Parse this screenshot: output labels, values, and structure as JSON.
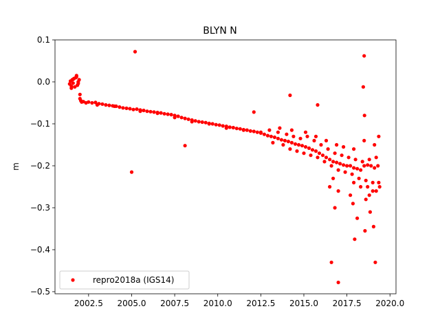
{
  "chart_data": {
    "type": "scatter",
    "title": "BLYN N",
    "xlabel": "",
    "ylabel": "m",
    "xlim": [
      2000.55,
      2020.35
    ],
    "ylim": [
      -0.505,
      0.1
    ],
    "xticks": [
      2002.5,
      2005.0,
      2007.5,
      2010.0,
      2012.5,
      2015.0,
      2017.5,
      2020.0
    ],
    "xtick_labels": [
      "2002.5",
      "2005.0",
      "2007.5",
      "2010.0",
      "2012.5",
      "2015.0",
      "2017.5",
      "2020.0"
    ],
    "yticks": [
      0.1,
      0.0,
      -0.1,
      -0.2,
      -0.3,
      -0.4,
      -0.5
    ],
    "ytick_labels": [
      "0.1",
      "0.0",
      "−0.1",
      "−0.2",
      "−0.3",
      "−0.4",
      "−0.5"
    ],
    "grid": false,
    "legend_position": "lower-left",
    "series": [
      {
        "name": "repro2018a (IGS14)",
        "color": "#ff0000",
        "marker": "circle",
        "x": [
          2001.4,
          2001.45,
          2001.5,
          2001.55,
          2001.6,
          2001.65,
          2001.7,
          2001.75,
          2001.8,
          2001.85,
          2001.9,
          2001.95,
          2002.0,
          2002.05,
          2001.5,
          2001.6,
          2001.8,
          2001.9,
          2002.0,
          2002.1,
          2002.2,
          2002.35,
          2002.5,
          2002.7,
          2002.9,
          2003.1,
          2003.3,
          2003.5,
          2003.7,
          2003.9,
          2004.1,
          2004.3,
          2004.5,
          2004.7,
          2004.9,
          2005.1,
          2005.3,
          2005.5,
          2005.7,
          2005.9,
          2006.1,
          2006.3,
          2006.5,
          2006.7,
          2006.9,
          2007.1,
          2007.3,
          2007.5,
          2007.7,
          2007.9,
          2008.1,
          2008.3,
          2008.5,
          2008.7,
          2008.9,
          2009.1,
          2009.3,
          2009.5,
          2009.7,
          2009.9,
          2010.1,
          2010.3,
          2010.5,
          2010.7,
          2010.9,
          2011.1,
          2011.3,
          2011.5,
          2011.7,
          2011.9,
          2012.1,
          2012.3,
          2012.5,
          2012.7,
          2012.9,
          2013.1,
          2013.3,
          2013.5,
          2013.7,
          2013.9,
          2014.1,
          2014.3,
          2014.5,
          2014.7,
          2014.9,
          2015.1,
          2015.3,
          2015.5,
          2015.7,
          2015.9,
          2016.1,
          2016.3,
          2016.5,
          2016.7,
          2016.9,
          2017.1,
          2017.3,
          2017.5,
          2017.7,
          2017.9,
          2018.1,
          2018.3,
          2018.5,
          2018.7,
          2018.9,
          2019.1,
          2019.3,
          2003.0,
          2004.0,
          2005.5,
          2006.5,
          2007.5,
          2008.5,
          2009.5,
          2010.5,
          2011.5,
          2012.5,
          2013.0,
          2013.5,
          2014.0,
          2014.4,
          2014.8,
          2015.2,
          2015.6,
          2016.0,
          2016.4,
          2016.8,
          2017.2,
          2017.6,
          2018.0,
          2018.4,
          2018.8,
          2019.2,
          2013.2,
          2013.8,
          2014.2,
          2014.6,
          2015.0,
          2015.4,
          2015.8,
          2016.2,
          2016.6,
          2017.0,
          2017.4,
          2017.8,
          2018.2,
          2018.6,
          2019.0,
          2019.4,
          2013.6,
          2014.3,
          2015.1,
          2015.7,
          2016.3,
          2016.9,
          2017.3,
          2017.9,
          2018.5,
          2019.1,
          2019.35,
          2016.5,
          2017.0,
          2017.7,
          2018.3,
          2018.8,
          2019.2,
          2019.35,
          2016.7,
          2017.9,
          2018.7,
          2019.0,
          2005.2,
          2005.0,
          2008.1,
          2012.1,
          2014.2,
          2015.8,
          2016.6,
          2017.0,
          2017.95,
          2018.1,
          2018.45,
          2018.5,
          2018.52,
          2018.55,
          2019.15,
          2019.05,
          2018.85,
          2016.8,
          2017.85,
          2018.6
        ],
        "y": [
          -0.005,
          0.002,
          -0.01,
          0.005,
          -0.003,
          0.008,
          -0.012,
          0.01,
          0.015,
          -0.008,
          0.0,
          0.005,
          -0.04,
          -0.045,
          -0.015,
          0.006,
          0.012,
          -0.004,
          -0.03,
          -0.048,
          -0.047,
          -0.05,
          -0.048,
          -0.05,
          -0.049,
          -0.052,
          -0.053,
          -0.055,
          -0.056,
          -0.057,
          -0.058,
          -0.06,
          -0.062,
          -0.063,
          -0.064,
          -0.066,
          -0.065,
          -0.067,
          -0.068,
          -0.07,
          -0.071,
          -0.072,
          -0.073,
          -0.074,
          -0.076,
          -0.077,
          -0.078,
          -0.08,
          -0.082,
          -0.085,
          -0.087,
          -0.089,
          -0.091,
          -0.093,
          -0.095,
          -0.096,
          -0.097,
          -0.099,
          -0.1,
          -0.102,
          -0.103,
          -0.105,
          -0.106,
          -0.108,
          -0.109,
          -0.111,
          -0.112,
          -0.114,
          -0.115,
          -0.117,
          -0.118,
          -0.12,
          -0.122,
          -0.125,
          -0.128,
          -0.13,
          -0.132,
          -0.135,
          -0.138,
          -0.14,
          -0.142,
          -0.145,
          -0.148,
          -0.15,
          -0.152,
          -0.155,
          -0.158,
          -0.162,
          -0.165,
          -0.17,
          -0.175,
          -0.18,
          -0.185,
          -0.19,
          -0.192,
          -0.195,
          -0.198,
          -0.2,
          -0.2,
          -0.205,
          -0.207,
          -0.21,
          -0.2,
          -0.198,
          -0.2,
          -0.205,
          -0.2,
          -0.055,
          -0.058,
          -0.07,
          -0.075,
          -0.085,
          -0.095,
          -0.1,
          -0.11,
          -0.115,
          -0.12,
          -0.115,
          -0.12,
          -0.125,
          -0.13,
          -0.135,
          -0.13,
          -0.14,
          -0.15,
          -0.16,
          -0.17,
          -0.175,
          -0.18,
          -0.185,
          -0.19,
          -0.185,
          -0.18,
          -0.145,
          -0.15,
          -0.16,
          -0.165,
          -0.17,
          -0.175,
          -0.18,
          -0.19,
          -0.2,
          -0.21,
          -0.215,
          -0.22,
          -0.23,
          -0.235,
          -0.24,
          -0.25,
          -0.11,
          -0.115,
          -0.12,
          -0.13,
          -0.14,
          -0.15,
          -0.155,
          -0.16,
          -0.14,
          -0.15,
          -0.13,
          -0.25,
          -0.26,
          -0.27,
          -0.25,
          -0.27,
          -0.26,
          -0.24,
          -0.23,
          -0.24,
          -0.25,
          -0.26,
          0.072,
          -0.215,
          -0.152,
          -0.072,
          -0.032,
          -0.055,
          -0.43,
          -0.478,
          -0.375,
          -0.325,
          -0.012,
          0.062,
          -0.08,
          -0.355,
          -0.43,
          -0.345,
          -0.31,
          -0.3,
          -0.29,
          -0.28
        ]
      }
    ]
  }
}
